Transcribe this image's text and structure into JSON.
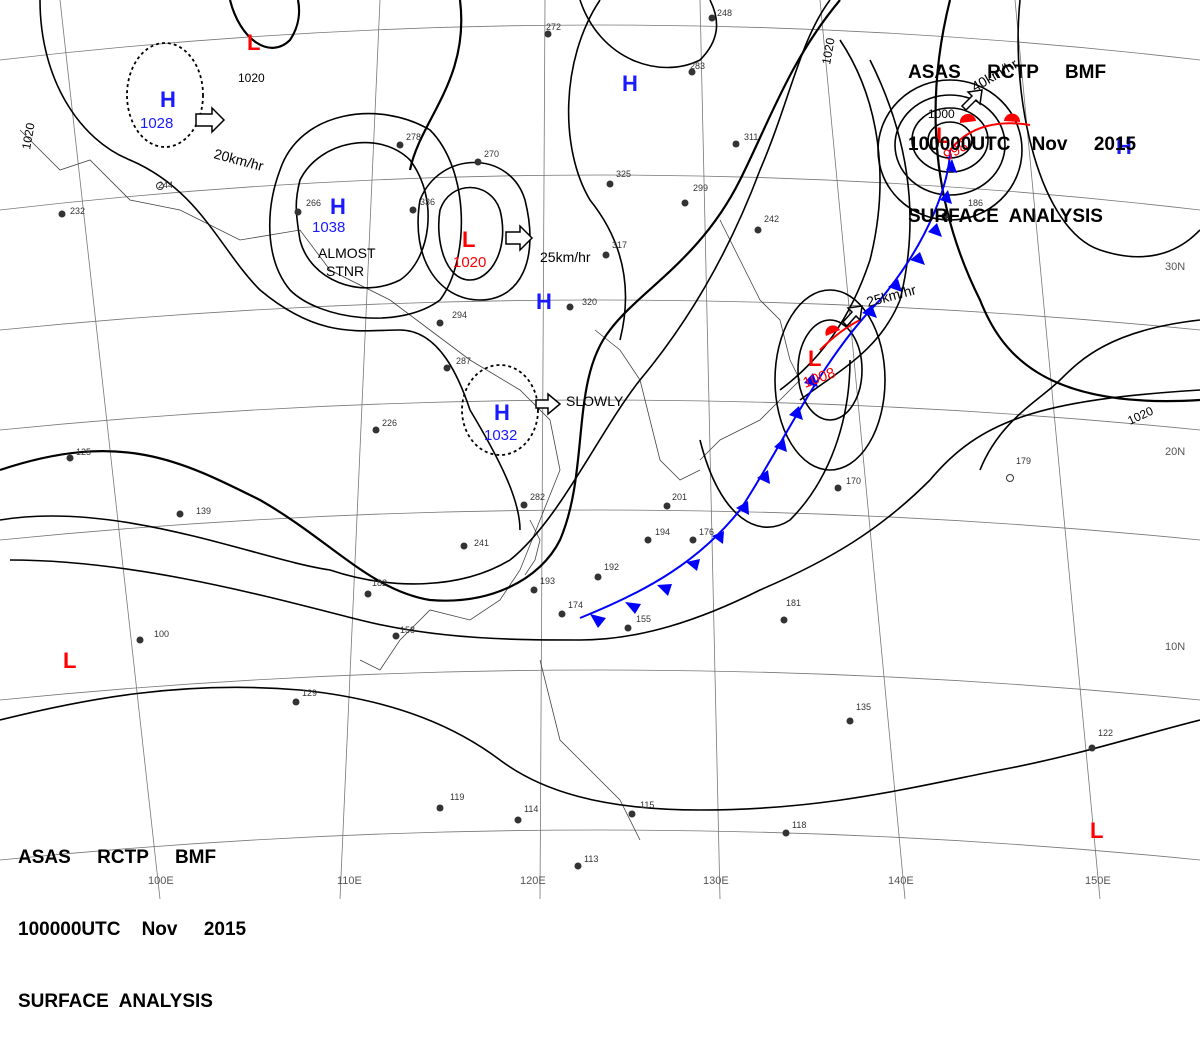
{
  "header_top": {
    "line1": "ASAS     RCTP     BMF",
    "line2": "100000UTC    Nov     2015",
    "line3": "SURFACE  ANALYSIS"
  },
  "header_bottom": {
    "line1": "ASAS     RCTP     BMF",
    "line2": "100000UTC    Nov     2015",
    "line3": "SURFACE  ANALYSIS"
  },
  "colors": {
    "high": "#1a1aff",
    "low": "#ff0000",
    "isobar": "#000000",
    "cold_front": "#0000ff",
    "warm_front": "#ff0000"
  },
  "longitudes": [
    "100E",
    "110E",
    "120E",
    "130E",
    "140E",
    "150E"
  ],
  "latitudes": [
    "30N",
    "20N",
    "10N"
  ],
  "isobar_labels": [
    "1020",
    "1020",
    "1020",
    "1000",
    "1020"
  ],
  "pressure_centers": [
    {
      "type": "L",
      "value": ""
    },
    {
      "type": "H",
      "value": "1028"
    },
    {
      "type": "H",
      "value": "1038"
    },
    {
      "type": "L",
      "value": "1020"
    },
    {
      "type": "H",
      "value": ""
    },
    {
      "type": "H",
      "value": ""
    },
    {
      "type": "H",
      "value": "1032"
    },
    {
      "type": "L",
      "value": "998"
    },
    {
      "type": "H",
      "value": ""
    },
    {
      "type": "L",
      "value": "1008"
    },
    {
      "type": "L",
      "value": ""
    },
    {
      "type": "L",
      "value": ""
    }
  ],
  "movement_notes": [
    "20km/hr",
    "ALMOST",
    "STNR",
    "25km/hr",
    "SLOWLY",
    "25km/hr",
    "40km/hr"
  ],
  "station_samples": [
    "244",
    "232",
    "266",
    "278",
    "336",
    "270",
    "325",
    "299",
    "317",
    "320",
    "294",
    "287",
    "226",
    "241",
    "282",
    "201",
    "176",
    "194",
    "192",
    "193",
    "174",
    "155",
    "158",
    "182",
    "139",
    "129",
    "125",
    "100",
    "118",
    "119",
    "114",
    "115",
    "113",
    "170",
    "179",
    "181",
    "135",
    "122",
    "186",
    "242",
    "311",
    "272",
    "248",
    "283"
  ]
}
